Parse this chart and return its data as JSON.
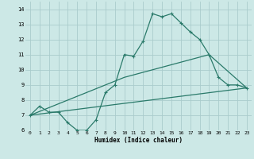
{
  "xlabel": "Humidex (Indice chaleur)",
  "bg_color": "#cce8e6",
  "grid_color": "#aacccc",
  "line_color": "#2a7a6a",
  "xlim": [
    -0.5,
    23.5
  ],
  "ylim": [
    6,
    14.5
  ],
  "xticks": [
    0,
    1,
    2,
    3,
    4,
    5,
    6,
    7,
    8,
    9,
    10,
    11,
    12,
    13,
    14,
    15,
    16,
    17,
    18,
    19,
    20,
    21,
    22,
    23
  ],
  "yticks": [
    6,
    7,
    8,
    9,
    10,
    11,
    12,
    13,
    14
  ],
  "line1_x": [
    0,
    1,
    2,
    3,
    4,
    5,
    6,
    7,
    8,
    9,
    10,
    11,
    12,
    13,
    14,
    15,
    16,
    17,
    18,
    19,
    20,
    21,
    22,
    23
  ],
  "line1_y": [
    7.0,
    7.6,
    7.2,
    7.2,
    6.5,
    6.0,
    6.0,
    6.7,
    8.5,
    9.0,
    11.0,
    10.9,
    11.9,
    13.7,
    13.5,
    13.7,
    13.1,
    12.5,
    12.0,
    11.0,
    9.5,
    9.0,
    9.0,
    8.8
  ],
  "line2_x": [
    0,
    23
  ],
  "line2_y": [
    7.0,
    8.8
  ],
  "line3_x": [
    0,
    10,
    19,
    23
  ],
  "line3_y": [
    7.0,
    9.5,
    11.0,
    8.8
  ]
}
